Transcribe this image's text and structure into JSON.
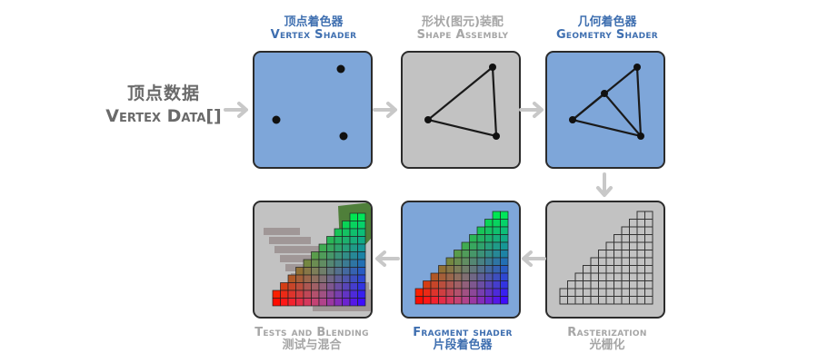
{
  "input": {
    "cn": "顶点数据",
    "en": "Vertex Data[]"
  },
  "stages": [
    {
      "id": "vertex",
      "cn": "顶点着色器",
      "en": "Vertex Shader"
    },
    {
      "id": "shape",
      "cn": "形状(图元)装配",
      "en": "Shape Assembly"
    },
    {
      "id": "geometry",
      "cn": "几何着色器",
      "en": "Geometry Shader"
    },
    {
      "id": "raster",
      "en": "Rasterization",
      "cn": "光栅化"
    },
    {
      "id": "fragment",
      "en": "Fragment shader",
      "cn": "片段着色器"
    },
    {
      "id": "tests",
      "en": "Tests and Blending",
      "cn": "测试与混合"
    }
  ],
  "colors": {
    "active_box": "#7ea6d9",
    "fixed_box": "#c2c2c2",
    "active_title": "#3f6fb0",
    "fixed_title": "#a6a6a6",
    "arrow": "#c8c8c8"
  }
}
